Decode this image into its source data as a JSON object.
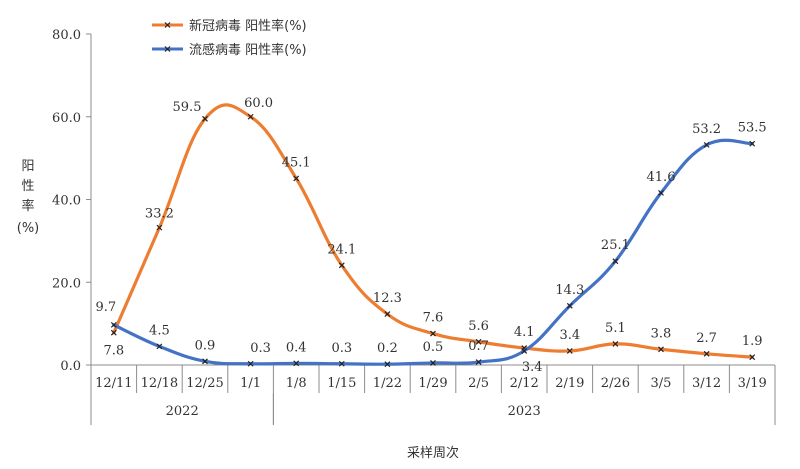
{
  "chart_data": {
    "type": "line",
    "categories": [
      "12/11",
      "12/18",
      "12/25",
      "1/1",
      "1/8",
      "1/15",
      "1/22",
      "1/29",
      "2/5",
      "2/12",
      "2/19",
      "2/26",
      "3/5",
      "3/12",
      "3/19"
    ],
    "year_groups": [
      {
        "label": "2022",
        "from": 0,
        "to": 3
      },
      {
        "label": "2023",
        "from": 4,
        "to": 14
      }
    ],
    "series": [
      {
        "name": "新冠病毒 阳性率(%)",
        "color": "#ED7D31",
        "values": [
          7.8,
          33.2,
          59.5,
          60.0,
          45.1,
          24.1,
          12.3,
          7.6,
          5.6,
          4.1,
          3.4,
          5.1,
          3.8,
          2.7,
          1.9
        ]
      },
      {
        "name": "流感病毒 阳性率(%)",
        "color": "#4472C4",
        "values": [
          9.7,
          4.5,
          0.9,
          0.3,
          0.4,
          0.3,
          0.2,
          0.5,
          0.7,
          3.4,
          14.3,
          25.1,
          41.6,
          53.2,
          53.5
        ]
      }
    ],
    "ylabel": [
      "阳",
      "性",
      "率",
      "(%)"
    ],
    "xlabel": "采样周次",
    "yticks": [
      "0.0",
      "20.0",
      "40.0",
      "60.0",
      "80.0"
    ],
    "ylim": [
      0,
      80
    ],
    "legend_position": "top-left",
    "grid": false
  }
}
